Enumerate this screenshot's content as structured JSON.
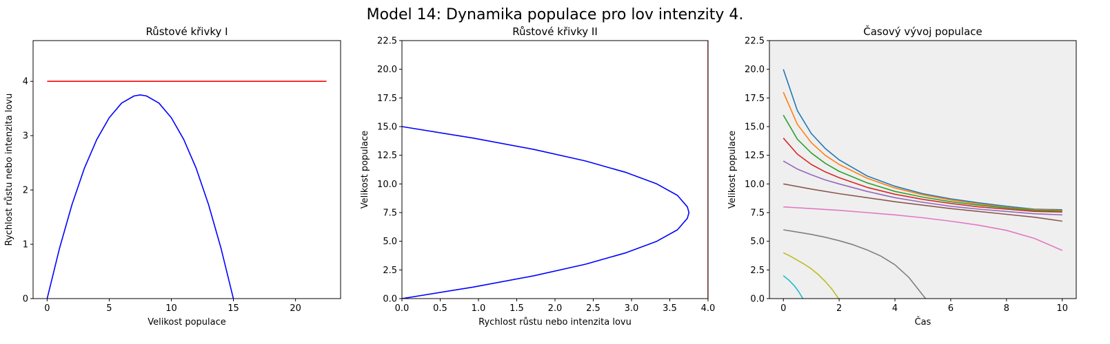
{
  "figure": {
    "title": "Model 14: Dynamika populace pro lov intenzity 4."
  },
  "colors": {
    "growth": "#0000ff",
    "hunting": "#ff0000",
    "panel3_background": "#efefef",
    "trajectories": [
      "#1f77b4",
      "#ff7f0e",
      "#2ca02c",
      "#d62728",
      "#9467bd",
      "#8c564b",
      "#e377c2",
      "#7f7f7f",
      "#bcbd22",
      "#17becf"
    ]
  },
  "chart_data": [
    {
      "type": "line",
      "title": "Růstové křivky I",
      "xlabel": "Velikost populace",
      "ylabel": "Rychlost růstu nebo intenzita lovu",
      "xlim": [
        -1.13,
        23.63
      ],
      "ylim": [
        0,
        4.75
      ],
      "x_ticks": [
        0,
        5,
        10,
        15,
        20
      ],
      "x_tick_labels": [
        "0",
        "5",
        "10",
        "15",
        "20"
      ],
      "y_ticks": [
        0,
        1,
        2,
        3,
        4
      ],
      "y_tick_labels": [
        "0",
        "1",
        "2",
        "3",
        "4"
      ],
      "grid": false,
      "series": [
        {
          "role": "growth",
          "x": [
            0,
            1,
            2,
            3,
            4,
            5,
            6,
            7,
            7.5,
            8,
            9,
            10,
            11,
            12,
            13,
            14,
            15
          ],
          "y": [
            0,
            0.93,
            1.73,
            2.4,
            2.93,
            3.33,
            3.6,
            3.73,
            3.75,
            3.73,
            3.6,
            3.33,
            2.93,
            2.4,
            1.73,
            0.93,
            0
          ]
        },
        {
          "role": "hunting",
          "x": [
            0,
            22.5
          ],
          "y": [
            4,
            4
          ]
        }
      ]
    },
    {
      "type": "line",
      "title": "Růstové křivky II",
      "xlabel": "Rychlost růstu nebo intenzita lovu",
      "ylabel": "Velikost populace",
      "xlim": [
        0,
        4
      ],
      "ylim": [
        0,
        22.5
      ],
      "x_ticks": [
        0,
        0.5,
        1,
        1.5,
        2,
        2.5,
        3,
        3.5,
        4
      ],
      "x_tick_labels": [
        "0.0",
        "0.5",
        "1.0",
        "1.5",
        "2.0",
        "2.5",
        "3.0",
        "3.5",
        "4.0"
      ],
      "y_ticks": [
        0,
        2.5,
        5,
        7.5,
        10,
        12.5,
        15,
        17.5,
        20,
        22.5
      ],
      "y_tick_labels": [
        "0.0",
        "2.5",
        "5.0",
        "7.5",
        "10.0",
        "12.5",
        "15.0",
        "17.5",
        "20.0",
        "22.5"
      ],
      "grid": false,
      "series": [
        {
          "role": "growth",
          "x": [
            0,
            0.93,
            1.73,
            2.4,
            2.93,
            3.33,
            3.6,
            3.73,
            3.75,
            3.73,
            3.6,
            3.33,
            2.93,
            2.4,
            1.73,
            0.93,
            0
          ],
          "y": [
            0,
            1,
            2,
            3,
            4,
            5,
            6,
            7,
            7.5,
            8,
            9,
            10,
            11,
            12,
            13,
            14,
            15
          ]
        },
        {
          "role": "hunting",
          "x": [
            4,
            4
          ],
          "y": [
            0,
            22.5
          ]
        }
      ]
    },
    {
      "type": "line",
      "title": "Časový vývoj populace",
      "xlabel": "Čas",
      "ylabel": "Velikost populace",
      "xlim": [
        -0.5,
        10.5
      ],
      "ylim": [
        0,
        22.5
      ],
      "x_ticks": [
        0,
        2,
        4,
        6,
        8,
        10
      ],
      "x_tick_labels": [
        "0",
        "2",
        "4",
        "6",
        "8",
        "10"
      ],
      "y_ticks": [
        0,
        2.5,
        5,
        7.5,
        10,
        12.5,
        15,
        17.5,
        20,
        22.5
      ],
      "y_tick_labels": [
        "0.0",
        "2.5",
        "5.0",
        "7.5",
        "10.0",
        "12.5",
        "15.0",
        "17.5",
        "20.0",
        "22.5"
      ],
      "grid": false,
      "series": [
        {
          "x": [
            0,
            0.5,
            1,
            1.5,
            2,
            3,
            4,
            5,
            6,
            7,
            8,
            9,
            10
          ],
          "y": [
            20,
            16.4,
            14.4,
            13.1,
            12.1,
            10.7,
            9.8,
            9.15,
            8.7,
            8.35,
            8.05,
            7.8,
            7.75
          ]
        },
        {
          "x": [
            0,
            0.5,
            1,
            1.5,
            2,
            3,
            4,
            5,
            6,
            7,
            8,
            9,
            10
          ],
          "y": [
            18,
            15.2,
            13.6,
            12.5,
            11.7,
            10.5,
            9.65,
            9.05,
            8.6,
            8.25,
            7.95,
            7.75,
            7.7
          ]
        },
        {
          "x": [
            0,
            0.5,
            1,
            1.5,
            2,
            3,
            4,
            5,
            6,
            7,
            8,
            9,
            10
          ],
          "y": [
            16,
            13.9,
            12.7,
            11.8,
            11.1,
            10.1,
            9.35,
            8.85,
            8.45,
            8.15,
            7.9,
            7.7,
            7.65
          ]
        },
        {
          "x": [
            0,
            0.5,
            1,
            1.5,
            2,
            3,
            4,
            5,
            6,
            7,
            8,
            9,
            10
          ],
          "y": [
            14,
            12.6,
            11.7,
            11.05,
            10.55,
            9.7,
            9.1,
            8.65,
            8.3,
            8.0,
            7.8,
            7.6,
            7.55
          ]
        },
        {
          "x": [
            0,
            0.5,
            1,
            1.5,
            2,
            3,
            4,
            5,
            6,
            7,
            8,
            9,
            10
          ],
          "y": [
            12,
            11.3,
            10.8,
            10.35,
            10.0,
            9.35,
            8.8,
            8.4,
            8.05,
            7.8,
            7.6,
            7.4,
            7.3
          ]
        },
        {
          "x": [
            0,
            1,
            2,
            3,
            4,
            5,
            6,
            7,
            8,
            9,
            10
          ],
          "y": [
            10,
            9.55,
            9.15,
            8.8,
            8.45,
            8.15,
            7.85,
            7.6,
            7.35,
            7.1,
            6.75
          ]
        },
        {
          "x": [
            0,
            1,
            2,
            3,
            4,
            5,
            6,
            7,
            8,
            9,
            10
          ],
          "y": [
            8,
            7.85,
            7.7,
            7.5,
            7.3,
            7.05,
            6.75,
            6.4,
            5.95,
            5.25,
            4.2
          ]
        },
        {
          "x": [
            0,
            0.5,
            1,
            1.5,
            2,
            2.5,
            3,
            3.5,
            4,
            4.5,
            5,
            5.1
          ],
          "y": [
            6,
            5.8,
            5.6,
            5.35,
            5.05,
            4.7,
            4.25,
            3.7,
            2.95,
            1.85,
            0.3,
            0
          ]
        },
        {
          "x": [
            0,
            0.25,
            0.5,
            0.75,
            1,
            1.25,
            1.5,
            1.75,
            1.98
          ],
          "y": [
            4,
            3.7,
            3.35,
            3.0,
            2.6,
            2.1,
            1.5,
            0.8,
            0
          ]
        },
        {
          "x": [
            0,
            0.2,
            0.4,
            0.55,
            0.7
          ],
          "y": [
            2,
            1.6,
            1.1,
            0.6,
            0
          ]
        }
      ]
    }
  ]
}
